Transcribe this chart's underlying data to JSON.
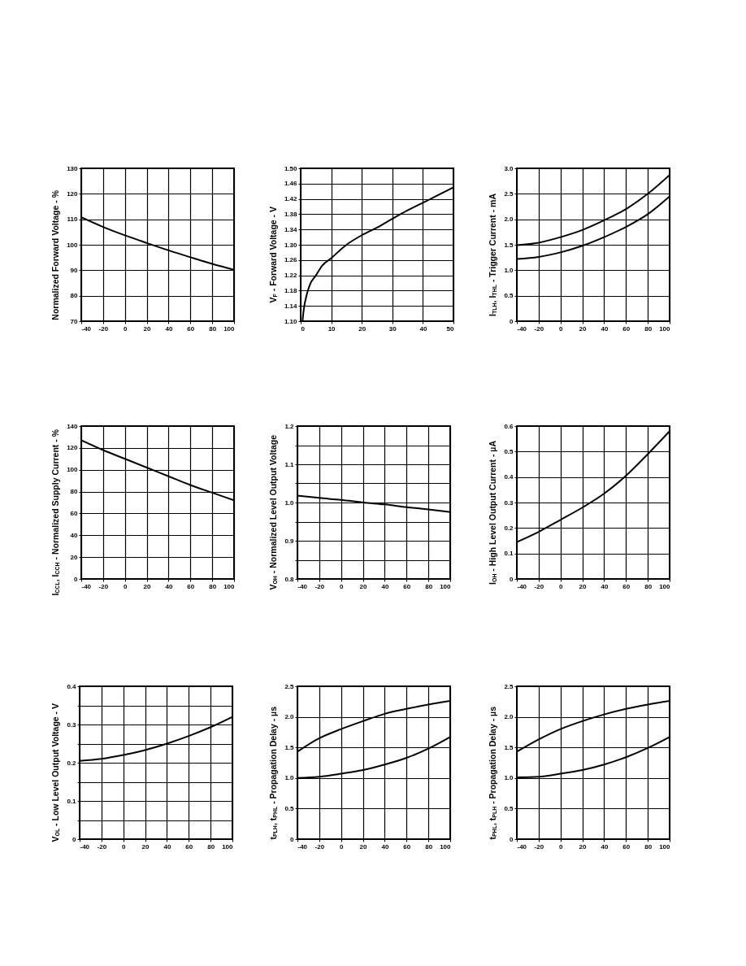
{
  "chart_data": [
    {
      "type": "line",
      "ylabel": "Normalized Forward Voltage - %",
      "xlim": [
        -40,
        100
      ],
      "xticks": [
        -40,
        -20,
        0,
        20,
        40,
        60,
        80,
        100
      ],
      "ylim": [
        70,
        130
      ],
      "yticks": [
        70,
        80,
        90,
        100,
        110,
        120,
        130
      ],
      "grid": true,
      "series": [
        {
          "color": "#000000",
          "x": [
            -40,
            -20,
            0,
            20,
            40,
            60,
            80,
            100
          ],
          "values": [
            110.8,
            107,
            103.7,
            100.7,
            97.8,
            95.1,
            92.5,
            90.2
          ]
        }
      ]
    },
    {
      "type": "line",
      "ylabel": "V$_{F}$ - Forward Voltage - V",
      "xlim": [
        0,
        50
      ],
      "xticks": [
        0,
        10,
        20,
        30,
        40,
        50
      ],
      "ylim": [
        1.1,
        1.5
      ],
      "yticks": [
        {
          "value": 1.1,
          "label": "1.10"
        },
        1.14,
        1.18,
        1.22,
        1.26,
        {
          "value": 1.3,
          "label": "1.30"
        },
        1.34,
        1.38,
        1.42,
        1.46,
        {
          "value": 1.5,
          "label": "1.50"
        }
      ],
      "grid": true,
      "series": [
        {
          "color": "#000000",
          "x": [
            0.6,
            1,
            2,
            3,
            5,
            7,
            10,
            15,
            20,
            25,
            30,
            35,
            40,
            45,
            50
          ],
          "values": [
            1.1,
            1.13,
            1.17,
            1.195,
            1.22,
            1.245,
            1.265,
            1.3,
            1.325,
            1.345,
            1.368,
            1.39,
            1.41,
            1.43,
            1.45
          ]
        }
      ]
    },
    {
      "type": "line",
      "ylabel": "I$_{TLH}$, I$_{THL}$ - Trigger Current - mA",
      "xlim": [
        -40,
        100
      ],
      "xticks": [
        -40,
        -20,
        0,
        20,
        40,
        60,
        80,
        100
      ],
      "ylim": [
        0,
        3
      ],
      "yticks": [
        0,
        0.5,
        {
          "value": 1,
          "label": "1.0"
        },
        1.5,
        {
          "value": 2,
          "label": "2.0"
        },
        2.5,
        {
          "value": 3,
          "label": "3.0"
        }
      ],
      "grid": true,
      "series": [
        {
          "color": "#000000",
          "x": [
            -40,
            -20,
            0,
            20,
            40,
            60,
            80,
            100
          ],
          "values": [
            1.49,
            1.54,
            1.65,
            1.79,
            1.98,
            2.2,
            2.5,
            2.87
          ]
        },
        {
          "color": "#000000",
          "x": [
            -40,
            -20,
            0,
            20,
            40,
            60,
            80,
            100
          ],
          "values": [
            1.22,
            1.26,
            1.35,
            1.48,
            1.65,
            1.85,
            2.1,
            2.45
          ]
        }
      ]
    },
    {
      "type": "line",
      "ylabel": "I$_{CCL}$, I$_{CCH}$ - Normalized Supply Current - %",
      "xlim": [
        -40,
        100
      ],
      "xticks": [
        -40,
        -20,
        0,
        20,
        40,
        60,
        80,
        100
      ],
      "ylim": [
        0,
        140
      ],
      "yticks": [
        0,
        20,
        40,
        60,
        80,
        100,
        120,
        140
      ],
      "grid": true,
      "series": [
        {
          "color": "#000000",
          "x": [
            -40,
            -20,
            0,
            20,
            40,
            60,
            80,
            100
          ],
          "values": [
            127,
            118,
            110,
            102,
            94,
            86,
            79,
            72
          ]
        }
      ]
    },
    {
      "type": "line",
      "ylabel": "V$_{OH}$ - Normalized Level Output Voltage",
      "xlim": [
        -40,
        100
      ],
      "xticks": [
        -40,
        -20,
        0,
        20,
        40,
        60,
        80,
        100
      ],
      "ylim": [
        0.8,
        1.2
      ],
      "yticks": [
        0.8,
        {
          "value": 0.85,
          "label": null
        },
        0.9,
        {
          "value": 0.95,
          "label": null
        },
        {
          "value": 1,
          "label": "1.0"
        },
        {
          "value": 1.05,
          "label": null
        },
        1.1,
        {
          "value": 1.15,
          "label": null
        },
        1.2
      ],
      "grid": true,
      "series": [
        {
          "color": "#000000",
          "x": [
            -40,
            -20,
            0,
            20,
            40,
            60,
            80,
            100
          ],
          "values": [
            1.018,
            1.012,
            1.007,
            1.0,
            0.995,
            0.988,
            0.982,
            0.975
          ]
        }
      ]
    },
    {
      "type": "line",
      "ylabel": "I$_{OH}$ - High Level Output Current - µA",
      "xlim": [
        -40,
        100
      ],
      "xticks": [
        -40,
        -20,
        0,
        20,
        40,
        60,
        80,
        100
      ],
      "ylim": [
        0,
        0.6
      ],
      "yticks": [
        0,
        0.1,
        0.2,
        0.3,
        0.4,
        0.5,
        0.6
      ],
      "grid": true,
      "series": [
        {
          "color": "#000000",
          "x": [
            -40,
            -20,
            0,
            20,
            40,
            60,
            80,
            100
          ],
          "values": [
            0.145,
            0.185,
            0.232,
            0.28,
            0.335,
            0.405,
            0.49,
            0.58
          ]
        }
      ]
    },
    {
      "type": "line",
      "ylabel": "V$_{OL}$ - Low Level Output Voltage - V",
      "xlim": [
        -40,
        100
      ],
      "xticks": [
        -40,
        -20,
        0,
        20,
        40,
        60,
        80,
        100
      ],
      "ylim": [
        0,
        0.4
      ],
      "yticks": [
        0,
        {
          "value": 0.05,
          "label": null
        },
        0.1,
        {
          "value": 0.15,
          "label": null
        },
        0.2,
        {
          "value": 0.25,
          "label": null
        },
        0.3,
        {
          "value": 0.35,
          "label": null
        },
        0.4
      ],
      "grid": true,
      "series": [
        {
          "color": "#000000",
          "x": [
            -40,
            -20,
            0,
            20,
            40,
            60,
            80,
            100
          ],
          "values": [
            0.205,
            0.21,
            0.22,
            0.233,
            0.25,
            0.27,
            0.293,
            0.32
          ]
        }
      ]
    },
    {
      "type": "line",
      "ylabel": "t$_{PLH}$, t$_{PHL}$ - Propagation Delay - µs",
      "xlim": [
        -40,
        100
      ],
      "xticks": [
        -40,
        -20,
        0,
        20,
        40,
        60,
        80,
        100
      ],
      "ylim": [
        0,
        2.5
      ],
      "yticks": [
        0,
        0.5,
        {
          "value": 1,
          "label": "1.0"
        },
        1.5,
        {
          "value": 2,
          "label": "2.0"
        },
        2.5
      ],
      "grid": true,
      "series": [
        {
          "color": "#000000",
          "x": [
            -40,
            -20,
            0,
            20,
            40,
            60,
            80,
            100
          ],
          "values": [
            1.43,
            1.65,
            1.8,
            1.93,
            2.05,
            2.13,
            2.2,
            2.26
          ]
        },
        {
          "color": "#000000",
          "x": [
            -40,
            -20,
            0,
            20,
            40,
            60,
            80,
            100
          ],
          "values": [
            1.0,
            1.02,
            1.07,
            1.13,
            1.22,
            1.33,
            1.48,
            1.67
          ]
        }
      ]
    },
    {
      "type": "line",
      "ylabel": "t$_{PHL}$, t$_{PLH}$ - Propagation Delay - µs",
      "xlim": [
        -40,
        100
      ],
      "xticks": [
        -40,
        -20,
        0,
        20,
        40,
        60,
        80,
        100
      ],
      "ylim": [
        0,
        2.5
      ],
      "yticks": [
        0,
        0.5,
        {
          "value": 1,
          "label": "1.0"
        },
        1.5,
        {
          "value": 2,
          "label": "2.0"
        },
        2.5
      ],
      "grid": true,
      "series": [
        {
          "color": "#000000",
          "x": [
            -40,
            -20,
            0,
            20,
            40,
            60,
            80,
            100
          ],
          "values": [
            1.43,
            1.63,
            1.8,
            1.93,
            2.04,
            2.13,
            2.2,
            2.26
          ]
        },
        {
          "color": "#000000",
          "x": [
            -40,
            -20,
            0,
            20,
            40,
            60,
            80,
            100
          ],
          "values": [
            1.01,
            1.02,
            1.07,
            1.13,
            1.22,
            1.34,
            1.49,
            1.67
          ]
        }
      ]
    }
  ]
}
